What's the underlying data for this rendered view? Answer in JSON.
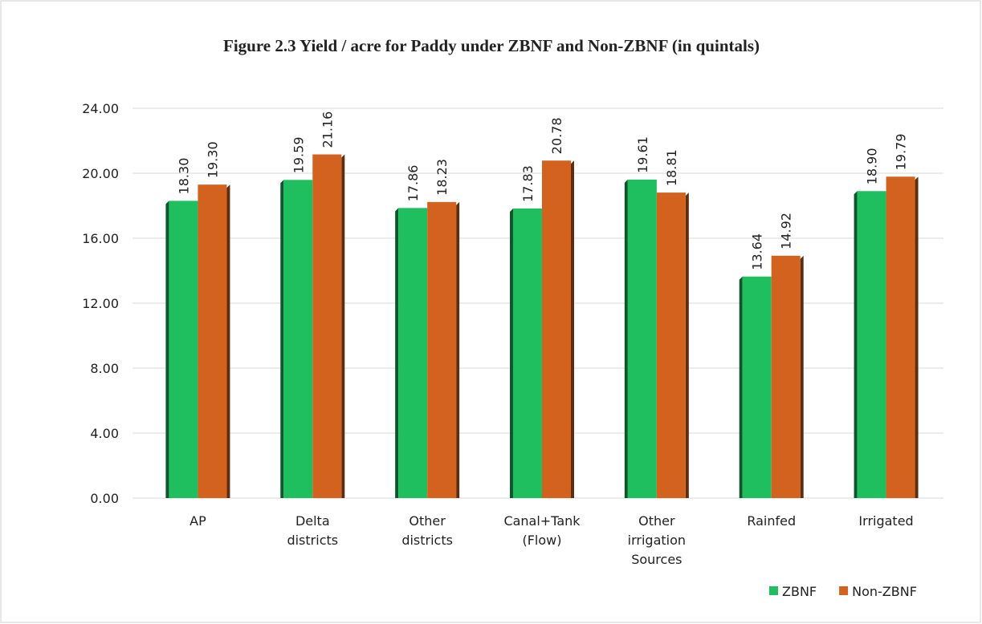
{
  "chart_data": {
    "type": "bar",
    "title": "Figure 2.3 Yield / acre for Paddy under ZBNF and Non-ZBNF (in quintals)",
    "categories": [
      "AP",
      "Delta districts",
      "Other districts",
      "Canal+Tank (Flow)",
      "Other irrigation Sources",
      "Rainfed",
      "Irrigated"
    ],
    "series": [
      {
        "name": "ZBNF",
        "color": "#1fbf5f",
        "values": [
          18.3,
          19.59,
          17.86,
          17.83,
          19.61,
          13.64,
          18.9
        ],
        "value_labels": [
          "18.30",
          "19.59",
          "17.86",
          "17.83",
          "19.61",
          "13.64",
          "18.90"
        ]
      },
      {
        "name": "Non-ZBNF",
        "color": "#d4621f",
        "values": [
          19.3,
          21.16,
          18.23,
          20.78,
          18.81,
          14.92,
          19.79
        ],
        "value_labels": [
          "19.30",
          "21.16",
          "18.23",
          "20.78",
          "18.81",
          "14.92",
          "19.79"
        ]
      }
    ],
    "ylim": [
      0,
      24
    ],
    "yticks": [
      {
        "value": 0,
        "label": "0.00"
      },
      {
        "value": 4,
        "label": "4.00"
      },
      {
        "value": 8,
        "label": "8.00"
      },
      {
        "value": 12,
        "label": "12.00"
      },
      {
        "value": 16,
        "label": "16.00"
      },
      {
        "value": 20,
        "label": "20.00"
      },
      {
        "value": 24,
        "label": "24.00"
      }
    ],
    "grid": true,
    "legend": "bottom-right"
  }
}
